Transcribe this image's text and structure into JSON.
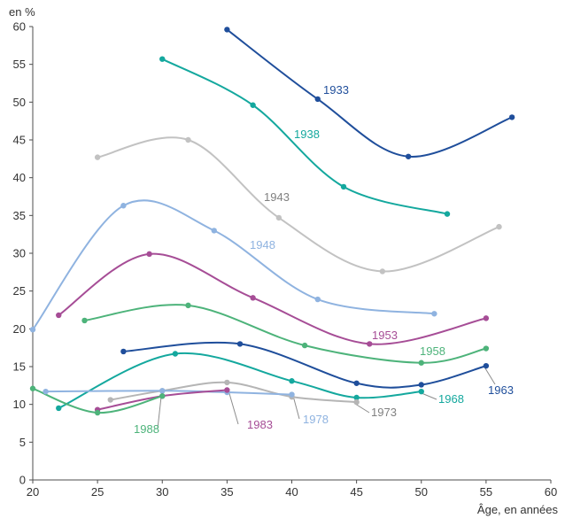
{
  "chart_data": {
    "type": "line",
    "ylabel": "en %",
    "xlabel": "Âge, en années",
    "xlim": [
      20,
      60
    ],
    "ylim": [
      0,
      60
    ],
    "xticks": [
      20,
      25,
      30,
      35,
      40,
      45,
      50,
      55,
      60
    ],
    "yticks": [
      0,
      5,
      10,
      15,
      20,
      25,
      30,
      35,
      40,
      45,
      50,
      55,
      60
    ],
    "grid": false,
    "series": [
      {
        "name": "1933",
        "color": "#1f4e9b",
        "points": [
          [
            35,
            59.6
          ],
          [
            42,
            50.4
          ],
          [
            49,
            42.8
          ],
          [
            57,
            48.0
          ]
        ]
      },
      {
        "name": "1938",
        "color": "#14a89e",
        "points": [
          [
            30,
            55.7
          ],
          [
            37,
            49.6
          ],
          [
            44,
            38.8
          ],
          [
            52,
            35.2
          ]
        ]
      },
      {
        "name": "1943",
        "color": "#c2c2c2",
        "points": [
          [
            25,
            42.7
          ],
          [
            32,
            45.0
          ],
          [
            39,
            34.7
          ],
          [
            47,
            27.6
          ],
          [
            56,
            33.5
          ]
        ]
      },
      {
        "name": "1948",
        "color": "#8fb3e0",
        "points": [
          [
            20,
            19.9
          ],
          [
            27,
            36.3
          ],
          [
            34,
            33.0
          ],
          [
            42,
            23.9
          ],
          [
            51,
            22.0
          ]
        ]
      },
      {
        "name": "1953",
        "color": "#a64d96",
        "points": [
          [
            22,
            21.8
          ],
          [
            29,
            29.9
          ],
          [
            37,
            24.1
          ],
          [
            46,
            18.0
          ],
          [
            55,
            21.4
          ]
        ]
      },
      {
        "name": "1958",
        "color": "#4db37a",
        "points": [
          [
            24,
            21.1
          ],
          [
            32,
            23.1
          ],
          [
            41,
            17.8
          ],
          [
            50,
            15.5
          ],
          [
            55,
            17.4
          ]
        ]
      },
      {
        "name": "1963",
        "color": "#1f4e9b",
        "points": [
          [
            27,
            17.0
          ],
          [
            36,
            18.0
          ],
          [
            45,
            12.8
          ],
          [
            50,
            12.6
          ],
          [
            55,
            15.1
          ]
        ]
      },
      {
        "name": "1968",
        "color": "#14a89e",
        "points": [
          [
            22,
            9.5
          ],
          [
            31,
            16.7
          ],
          [
            40,
            13.1
          ],
          [
            45,
            10.9
          ],
          [
            50,
            11.7
          ]
        ]
      },
      {
        "name": "1973",
        "color": "#b5b5b5",
        "points": [
          [
            26,
            10.6
          ],
          [
            30,
            11.8
          ],
          [
            35,
            12.9
          ],
          [
            40,
            11.0
          ],
          [
            45,
            10.3
          ]
        ]
      },
      {
        "name": "1978",
        "color": "#8fb3e0",
        "points": [
          [
            21,
            11.7
          ],
          [
            30,
            11.8
          ],
          [
            35,
            11.6
          ],
          [
            40,
            11.3
          ]
        ]
      },
      {
        "name": "1983",
        "color": "#a64d96",
        "points": [
          [
            25,
            9.3
          ],
          [
            30,
            11.1
          ],
          [
            35,
            11.9
          ]
        ]
      },
      {
        "name": "1988",
        "color": "#4db37a",
        "points": [
          [
            20,
            12.1
          ],
          [
            25,
            8.9
          ],
          [
            30,
            11.1
          ]
        ]
      }
    ]
  }
}
